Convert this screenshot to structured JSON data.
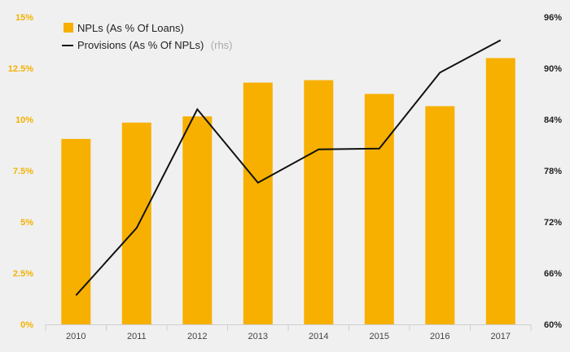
{
  "chart_data": {
    "type": "bar+line",
    "categories": [
      "2010",
      "2011",
      "2012",
      "2013",
      "2014",
      "2015",
      "2016",
      "2017"
    ],
    "series": [
      {
        "name": "NPLs (As % Of Loans)",
        "type": "bar",
        "axis": "left",
        "color": "#f7b000",
        "values": [
          9.05,
          9.85,
          10.15,
          11.8,
          11.92,
          11.25,
          10.65,
          13.0
        ]
      },
      {
        "name": "Provisions (As % Of NPLs)",
        "rhs_suffix": "(rhs)",
        "type": "line",
        "axis": "right",
        "color": "#111111",
        "values": [
          63.4,
          71.3,
          85.2,
          76.6,
          80.5,
          80.6,
          89.5,
          93.3
        ]
      }
    ],
    "left_axis": {
      "ylim": [
        0,
        15
      ],
      "ticks": [
        0,
        2.5,
        5,
        7.5,
        10,
        12.5,
        15
      ],
      "tick_labels": [
        "0%",
        "2.5%",
        "5%",
        "7.5%",
        "10%",
        "12.5%",
        "15%"
      ],
      "color": "#f2b200"
    },
    "right_axis": {
      "ylim": [
        60,
        96
      ],
      "ticks": [
        60,
        66,
        72,
        78,
        84,
        90,
        96
      ],
      "tick_labels": [
        "60%",
        "66%",
        "72%",
        "78%",
        "84%",
        "90%",
        "96%"
      ],
      "color": "#222222"
    },
    "legend_position": "top-left",
    "grid": false
  }
}
